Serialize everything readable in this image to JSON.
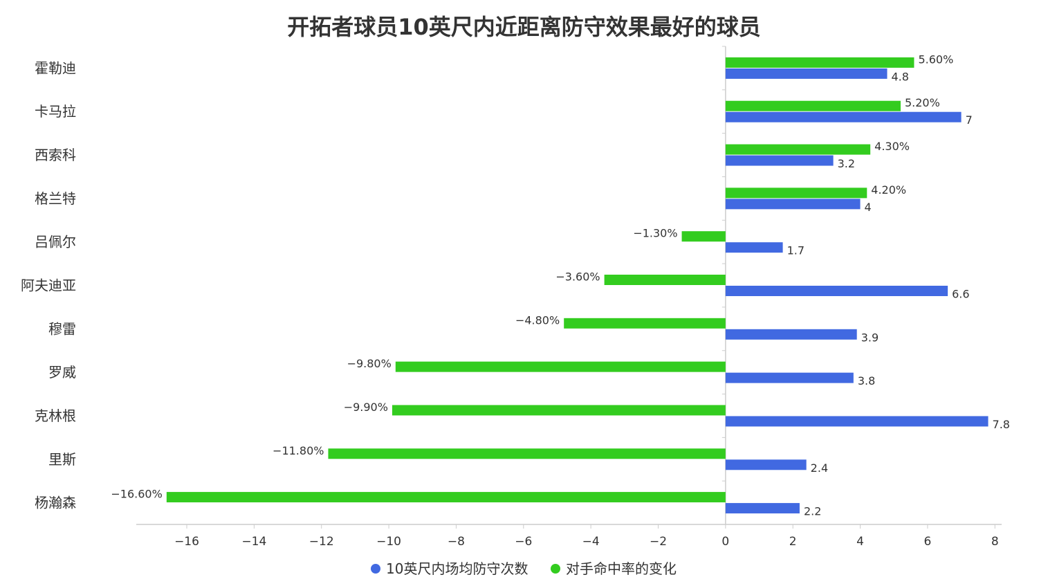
{
  "chart_data": {
    "type": "bar",
    "orientation": "horizontal",
    "title": "开拓者球员10英尺内近距离防守效果最好的球员",
    "categories": [
      "霍勒迪",
      "卡马拉",
      "西索科",
      "格兰特",
      "吕佩尔",
      "阿夫迪亚",
      "穆雷",
      "罗威",
      "克林根",
      "里斯",
      "杨瀚森"
    ],
    "series": [
      {
        "name": "对手命中率的变化",
        "color": "#33CC1F",
        "values": [
          5.6,
          5.2,
          4.3,
          4.2,
          -1.3,
          -3.6,
          -4.8,
          -9.8,
          -9.9,
          -11.8,
          -16.6
        ],
        "labels": [
          "5.60%",
          "5.20%",
          "4.30%",
          "4.20%",
          "-1.30%",
          "-3.60%",
          "-4.80%",
          "-9.80%",
          "-9.90%",
          "-11.80%",
          "-16.60%"
        ]
      },
      {
        "name": "10英尺内场均防守次数",
        "color": "#4169E1",
        "values": [
          4.8,
          7,
          3.2,
          4,
          1.7,
          6.6,
          3.9,
          3.8,
          7.8,
          2.4,
          2.2
        ],
        "labels": [
          "4.8",
          "7",
          "3.2",
          "4",
          "1.7",
          "6.6",
          "3.9",
          "3.8",
          "7.8",
          "2.4",
          "2.2"
        ]
      }
    ],
    "xlim": [
      -17.5,
      8.2
    ],
    "xticks": [
      -16,
      -14,
      -12,
      -10,
      -8,
      -6,
      -4,
      -2,
      0,
      2,
      4,
      6,
      8
    ],
    "grid": false,
    "legend": {
      "position": "bottom-center",
      "entries": [
        "10英尺内场均防守次数",
        "对手命中率的变化"
      ]
    },
    "axis_color": "#cccccc"
  }
}
